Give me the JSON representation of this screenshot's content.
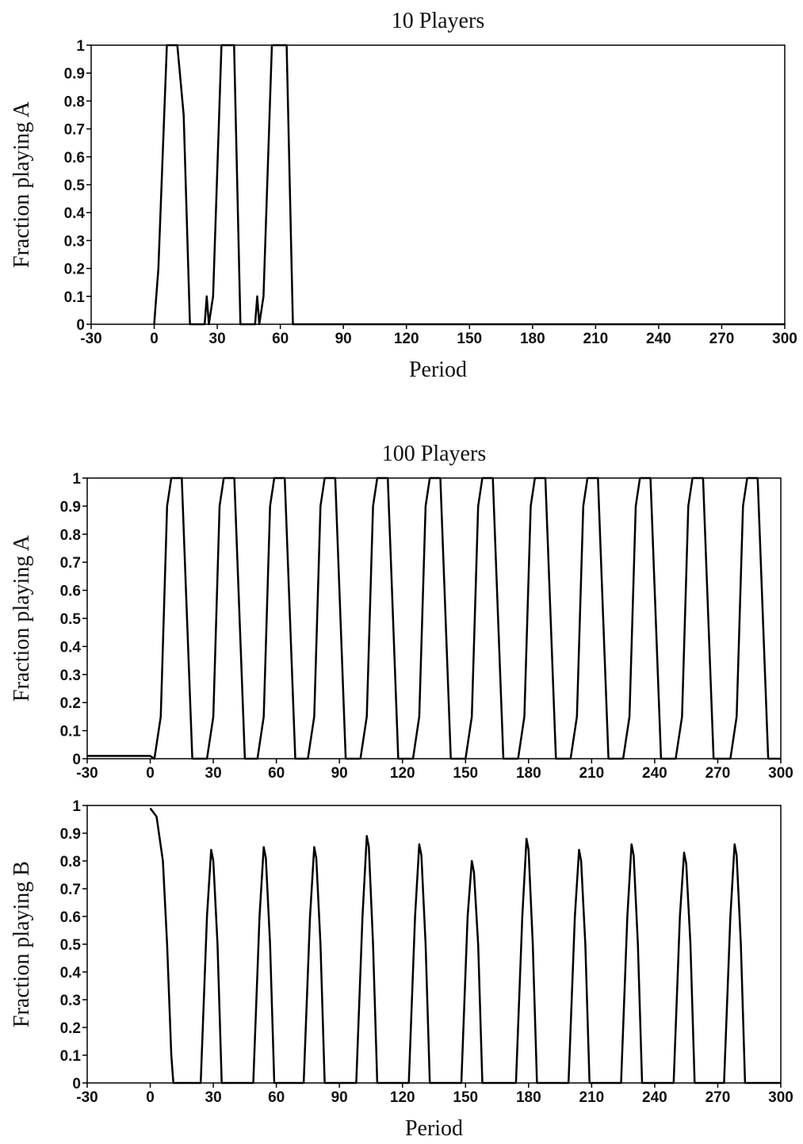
{
  "chart_data": [
    {
      "type": "line",
      "title": "10 Players",
      "x_label": "Period",
      "y_label": "Fraction playing A",
      "color": "#000000",
      "x": [
        0,
        2,
        6,
        11,
        14,
        17,
        24,
        25,
        26,
        28,
        32,
        38,
        41,
        48,
        49,
        50,
        52,
        56,
        63,
        66,
        300
      ],
      "values": [
        0,
        0.2,
        1,
        1,
        0.75,
        0,
        0,
        0.1,
        0,
        0.1,
        1,
        1,
        0,
        0,
        0.1,
        0,
        0.1,
        1,
        1,
        0,
        0
      ],
      "xlim": [
        -30,
        300
      ],
      "xticks": [
        -30,
        0,
        30,
        60,
        90,
        120,
        150,
        180,
        210,
        240,
        270,
        300
      ],
      "ylim": [
        0,
        1
      ],
      "yticks": [
        0,
        0.1,
        0.2,
        0.3,
        0.4,
        0.5,
        0.6,
        0.7,
        0.8,
        0.9,
        1
      ]
    },
    {
      "type": "line",
      "title": "100 Players",
      "y_label": "Fraction playing A",
      "color": "#000000",
      "x": [
        -30,
        0,
        2,
        5,
        8,
        10,
        15,
        17,
        20,
        27,
        30,
        33,
        35,
        40,
        42,
        45,
        51,
        54,
        57,
        59,
        64,
        66,
        69,
        75,
        78,
        81,
        83,
        88,
        90,
        93,
        100,
        103,
        106,
        108,
        113,
        115,
        118,
        125,
        128,
        131,
        133,
        138,
        140,
        143,
        150,
        153,
        156,
        158,
        163,
        165,
        168,
        175,
        178,
        181,
        183,
        188,
        190,
        193,
        200,
        203,
        206,
        208,
        213,
        215,
        218,
        225,
        228,
        231,
        233,
        238,
        240,
        243,
        250,
        253,
        256,
        258,
        263,
        265,
        268,
        276,
        279,
        282,
        284,
        289,
        291,
        294,
        300
      ],
      "values": [
        0.01,
        0.01,
        0,
        0.15,
        0.9,
        1,
        1,
        0.6,
        0,
        0,
        0.15,
        0.9,
        1,
        1,
        0.6,
        0,
        0,
        0.15,
        0.9,
        1,
        1,
        0.6,
        0,
        0,
        0.15,
        0.9,
        1,
        1,
        0.6,
        0,
        0,
        0.15,
        0.9,
        1,
        1,
        0.6,
        0,
        0,
        0.15,
        0.9,
        1,
        1,
        0.6,
        0,
        0,
        0.15,
        0.9,
        1,
        1,
        0.6,
        0,
        0,
        0.15,
        0.9,
        1,
        1,
        0.6,
        0,
        0,
        0.15,
        0.9,
        1,
        1,
        0.6,
        0,
        0,
        0.15,
        0.9,
        1,
        1,
        0.6,
        0,
        0,
        0.15,
        0.9,
        1,
        1,
        0.6,
        0,
        0,
        0.15,
        0.9,
        1,
        1,
        0.6,
        0,
        0
      ],
      "xlim": [
        -30,
        300
      ],
      "xticks": [
        -30,
        0,
        30,
        60,
        90,
        120,
        150,
        180,
        210,
        240,
        270,
        300
      ],
      "ylim": [
        0,
        1
      ],
      "yticks": [
        0,
        0.1,
        0.2,
        0.3,
        0.4,
        0.5,
        0.6,
        0.7,
        0.8,
        0.9,
        1
      ]
    },
    {
      "type": "line",
      "x_label": "Period",
      "y_label": "Fraction playing B",
      "color": "#000000",
      "x": [
        0,
        3,
        6,
        8,
        10,
        11,
        24,
        27,
        29,
        30,
        32,
        34,
        49,
        52,
        54,
        55,
        57,
        59,
        73,
        76,
        78,
        79,
        81,
        83,
        98,
        101,
        103,
        104,
        106,
        108,
        123,
        126,
        128,
        129,
        131,
        133,
        148,
        151,
        153,
        154,
        156,
        158,
        174,
        177,
        179,
        180,
        182,
        184,
        199,
        202,
        204,
        205,
        207,
        209,
        224,
        227,
        229,
        230,
        232,
        234,
        249,
        252,
        254,
        255,
        257,
        259,
        273,
        276,
        278,
        279,
        281,
        283,
        300
      ],
      "values": [
        0.99,
        0.96,
        0.8,
        0.5,
        0.1,
        0,
        0,
        0.6,
        0.84,
        0.8,
        0.5,
        0,
        0,
        0.6,
        0.85,
        0.81,
        0.5,
        0,
        0,
        0.6,
        0.85,
        0.81,
        0.5,
        0,
        0,
        0.6,
        0.89,
        0.85,
        0.5,
        0,
        0,
        0.6,
        0.86,
        0.82,
        0.5,
        0,
        0,
        0.6,
        0.8,
        0.76,
        0.5,
        0,
        0,
        0.6,
        0.88,
        0.84,
        0.5,
        0,
        0,
        0.6,
        0.84,
        0.8,
        0.5,
        0,
        0,
        0.6,
        0.86,
        0.82,
        0.5,
        0,
        0,
        0.6,
        0.83,
        0.79,
        0.5,
        0,
        0,
        0.6,
        0.86,
        0.82,
        0.5,
        0,
        0
      ],
      "xlim": [
        -30,
        300
      ],
      "xticks": [
        -30,
        0,
        30,
        60,
        90,
        120,
        150,
        180,
        210,
        240,
        270,
        300
      ],
      "ylim": [
        0,
        1
      ],
      "yticks": [
        0,
        0.1,
        0.2,
        0.3,
        0.4,
        0.5,
        0.6,
        0.7,
        0.8,
        0.9,
        1
      ]
    }
  ]
}
